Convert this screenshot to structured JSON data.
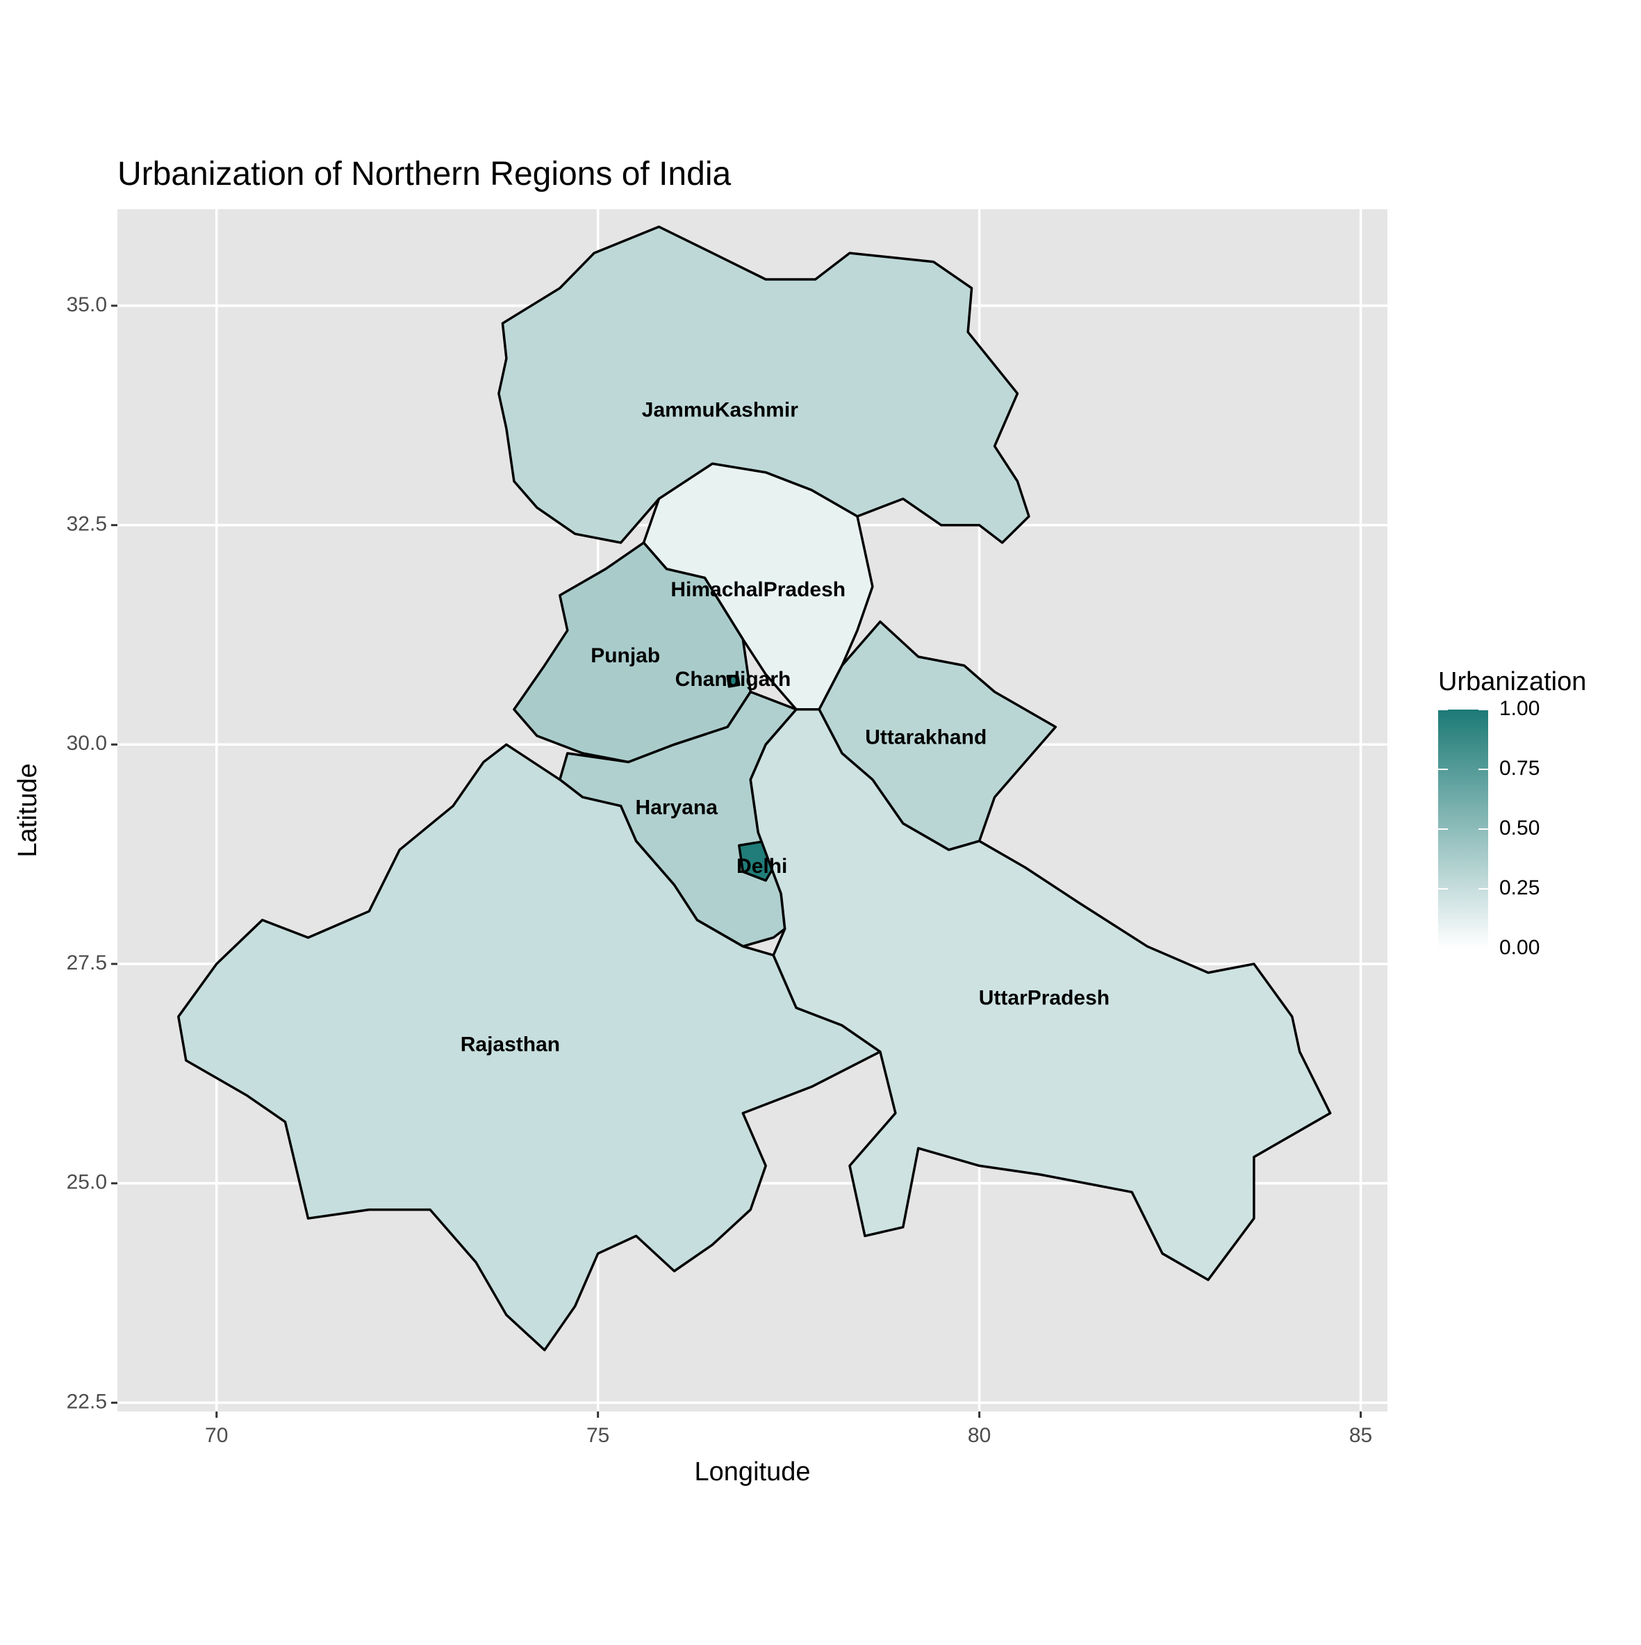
{
  "chart_data": {
    "type": "choropleth",
    "title": "Urbanization of Northern Regions of India",
    "xlabel": "Longitude",
    "ylabel": "Latitude",
    "xlim": [
      68.7,
      85.35
    ],
    "ylim": [
      22.4,
      36.1
    ],
    "x_ticks": [
      70,
      75,
      80,
      85
    ],
    "y_ticks": [
      22.5,
      25.0,
      27.5,
      30.0,
      32.5,
      35.0
    ],
    "x_tick_labels": [
      "70",
      "75",
      "80",
      "85"
    ],
    "y_tick_labels": [
      "22.5",
      "25.0",
      "27.5",
      "30.0",
      "32.5",
      "35.0"
    ],
    "grid": true,
    "legend": {
      "title": "Urbanization",
      "placement": "right",
      "min": 0.0,
      "max": 1.0,
      "low_color": "#ffffff",
      "high_color": "#1c7a76",
      "ticks": [
        1.0,
        0.75,
        0.5,
        0.25,
        0.0
      ],
      "tick_labels": [
        "1.00",
        "0.75",
        "0.50",
        "0.25",
        "0.00"
      ]
    },
    "regions": [
      {
        "name": "JammuKashmir",
        "value": 0.29,
        "label_pos": [
          76.6,
          33.8
        ],
        "outline": [
          [
            74.95,
            35.6
          ],
          [
            75.8,
            35.9
          ],
          [
            76.5,
            35.6
          ],
          [
            77.2,
            35.3
          ],
          [
            77.85,
            35.3
          ],
          [
            78.3,
            35.6
          ],
          [
            79.4,
            35.5
          ],
          [
            79.9,
            35.2
          ],
          [
            79.85,
            34.7
          ],
          [
            80.5,
            34.0
          ],
          [
            80.2,
            33.4
          ],
          [
            80.5,
            33.0
          ],
          [
            80.65,
            32.6
          ],
          [
            80.3,
            32.3
          ],
          [
            80.0,
            32.5
          ],
          [
            79.5,
            32.5
          ],
          [
            79.0,
            32.8
          ],
          [
            78.4,
            32.6
          ],
          [
            77.8,
            32.9
          ],
          [
            77.2,
            33.1
          ],
          [
            76.5,
            33.2
          ],
          [
            75.8,
            32.8
          ],
          [
            75.3,
            32.3
          ],
          [
            74.7,
            32.4
          ],
          [
            74.2,
            32.7
          ],
          [
            73.9,
            33.0
          ],
          [
            73.8,
            33.6
          ],
          [
            73.7,
            34.0
          ],
          [
            73.8,
            34.4
          ],
          [
            73.75,
            34.8
          ],
          [
            74.5,
            35.2
          ],
          [
            74.95,
            35.6
          ]
        ]
      },
      {
        "name": "HimachalPradesh",
        "value": 0.1,
        "label_pos": [
          77.1,
          31.75
        ],
        "outline": [
          [
            75.8,
            32.8
          ],
          [
            76.5,
            33.2
          ],
          [
            77.2,
            33.1
          ],
          [
            77.8,
            32.9
          ],
          [
            78.4,
            32.6
          ],
          [
            78.6,
            31.8
          ],
          [
            78.4,
            31.3
          ],
          [
            78.2,
            30.9
          ],
          [
            77.9,
            30.4
          ],
          [
            77.6,
            30.4
          ],
          [
            77.2,
            30.8
          ],
          [
            76.9,
            31.2
          ],
          [
            76.4,
            31.9
          ],
          [
            75.9,
            32.0
          ],
          [
            75.6,
            32.3
          ],
          [
            75.8,
            32.8
          ]
        ]
      },
      {
        "name": "Punjab",
        "value": 0.38,
        "label_pos": [
          75.36,
          31.0
        ],
        "outline": [
          [
            75.6,
            32.3
          ],
          [
            75.9,
            32.0
          ],
          [
            76.4,
            31.9
          ],
          [
            76.9,
            31.2
          ],
          [
            77.0,
            30.6
          ],
          [
            76.7,
            30.2
          ],
          [
            76.0,
            30.0
          ],
          [
            75.4,
            29.8
          ],
          [
            74.8,
            29.9
          ],
          [
            74.2,
            30.1
          ],
          [
            73.9,
            30.4
          ],
          [
            74.3,
            30.9
          ],
          [
            74.6,
            31.3
          ],
          [
            74.5,
            31.7
          ],
          [
            75.1,
            32.0
          ],
          [
            75.6,
            32.3
          ]
        ]
      },
      {
        "name": "Chandigarh",
        "value": 0.97,
        "label_pos": [
          76.77,
          30.73
        ],
        "outline": [
          [
            76.7,
            30.78
          ],
          [
            76.83,
            30.78
          ],
          [
            76.85,
            30.68
          ],
          [
            76.72,
            30.66
          ]
        ]
      },
      {
        "name": "Uttarakhand",
        "value": 0.31,
        "label_pos": [
          79.3,
          30.07
        ],
        "outline": [
          [
            78.2,
            30.9
          ],
          [
            78.7,
            31.4
          ],
          [
            79.2,
            31.0
          ],
          [
            79.8,
            30.9
          ],
          [
            80.2,
            30.6
          ],
          [
            81.0,
            30.2
          ],
          [
            80.6,
            29.8
          ],
          [
            80.2,
            29.4
          ],
          [
            80.0,
            28.9
          ],
          [
            79.6,
            28.8
          ],
          [
            79.0,
            29.1
          ],
          [
            78.6,
            29.6
          ],
          [
            78.2,
            29.9
          ],
          [
            77.9,
            30.4
          ],
          [
            78.2,
            30.9
          ]
        ]
      },
      {
        "name": "Haryana",
        "value": 0.35,
        "label_pos": [
          76.03,
          29.27
        ],
        "outline": [
          [
            76.7,
            30.2
          ],
          [
            77.0,
            30.6
          ],
          [
            77.6,
            30.4
          ],
          [
            77.2,
            30.0
          ],
          [
            77.0,
            29.6
          ],
          [
            77.1,
            29.0
          ],
          [
            77.4,
            28.3
          ],
          [
            77.45,
            27.9
          ],
          [
            77.3,
            27.8
          ],
          [
            76.9,
            27.7
          ],
          [
            76.3,
            28.0
          ],
          [
            76.0,
            28.4
          ],
          [
            75.5,
            28.9
          ],
          [
            75.3,
            29.3
          ],
          [
            74.8,
            29.4
          ],
          [
            74.5,
            29.6
          ],
          [
            74.6,
            29.9
          ],
          [
            75.4,
            29.8
          ],
          [
            76.0,
            30.0
          ],
          [
            76.7,
            30.2
          ]
        ]
      },
      {
        "name": "Delhi",
        "value": 0.98,
        "label_pos": [
          77.15,
          28.6
        ],
        "outline": [
          [
            76.85,
            28.85
          ],
          [
            77.2,
            28.9
          ],
          [
            77.3,
            28.6
          ],
          [
            77.2,
            28.45
          ],
          [
            76.9,
            28.55
          ]
        ]
      },
      {
        "name": "Rajasthan",
        "value": 0.25,
        "label_pos": [
          73.85,
          26.57
        ],
        "outline": [
          [
            73.8,
            30.0
          ],
          [
            74.5,
            29.6
          ],
          [
            74.8,
            29.4
          ],
          [
            75.3,
            29.3
          ],
          [
            75.5,
            28.9
          ],
          [
            76.0,
            28.4
          ],
          [
            76.3,
            28.0
          ],
          [
            76.9,
            27.7
          ],
          [
            77.3,
            27.6
          ],
          [
            77.6,
            27.0
          ],
          [
            78.2,
            26.8
          ],
          [
            78.7,
            26.5
          ],
          [
            77.8,
            26.1
          ],
          [
            76.9,
            25.8
          ],
          [
            77.2,
            25.2
          ],
          [
            77.0,
            24.7
          ],
          [
            76.5,
            24.3
          ],
          [
            76.0,
            24.0
          ],
          [
            75.5,
            24.4
          ],
          [
            75.0,
            24.2
          ],
          [
            74.7,
            23.6
          ],
          [
            74.3,
            23.1
          ],
          [
            73.8,
            23.5
          ],
          [
            73.4,
            24.1
          ],
          [
            72.8,
            24.7
          ],
          [
            72.0,
            24.7
          ],
          [
            71.2,
            24.6
          ],
          [
            70.9,
            25.7
          ],
          [
            70.4,
            26.0
          ],
          [
            69.6,
            26.4
          ],
          [
            69.5,
            26.9
          ],
          [
            70.0,
            27.5
          ],
          [
            70.6,
            28.0
          ],
          [
            71.2,
            27.8
          ],
          [
            72.0,
            28.1
          ],
          [
            72.4,
            28.8
          ],
          [
            73.1,
            29.3
          ],
          [
            73.5,
            29.8
          ],
          [
            73.8,
            30.0
          ]
        ]
      },
      {
        "name": "UttarPradesh",
        "value": 0.22,
        "label_pos": [
          80.85,
          27.1
        ],
        "outline": [
          [
            77.6,
            30.4
          ],
          [
            77.9,
            30.4
          ],
          [
            78.2,
            29.9
          ],
          [
            78.6,
            29.6
          ],
          [
            79.0,
            29.1
          ],
          [
            79.6,
            28.8
          ],
          [
            80.0,
            28.9
          ],
          [
            80.6,
            28.6
          ],
          [
            81.3,
            28.2
          ],
          [
            82.2,
            27.7
          ],
          [
            83.0,
            27.4
          ],
          [
            83.6,
            27.5
          ],
          [
            84.1,
            26.9
          ],
          [
            84.2,
            26.5
          ],
          [
            84.6,
            25.8
          ],
          [
            83.6,
            25.3
          ],
          [
            83.6,
            24.6
          ],
          [
            83.0,
            23.9
          ],
          [
            82.4,
            24.2
          ],
          [
            82.0,
            24.9
          ],
          [
            80.8,
            25.1
          ],
          [
            80.0,
            25.2
          ],
          [
            79.2,
            25.4
          ],
          [
            79.0,
            24.5
          ],
          [
            78.5,
            24.4
          ],
          [
            78.3,
            25.2
          ],
          [
            78.9,
            25.8
          ],
          [
            78.7,
            26.5
          ],
          [
            78.2,
            26.8
          ],
          [
            77.6,
            27.0
          ],
          [
            77.3,
            27.6
          ],
          [
            77.45,
            27.9
          ],
          [
            77.4,
            28.3
          ],
          [
            77.1,
            29.0
          ],
          [
            77.0,
            29.6
          ],
          [
            77.2,
            30.0
          ],
          [
            77.6,
            30.4
          ]
        ]
      }
    ]
  }
}
